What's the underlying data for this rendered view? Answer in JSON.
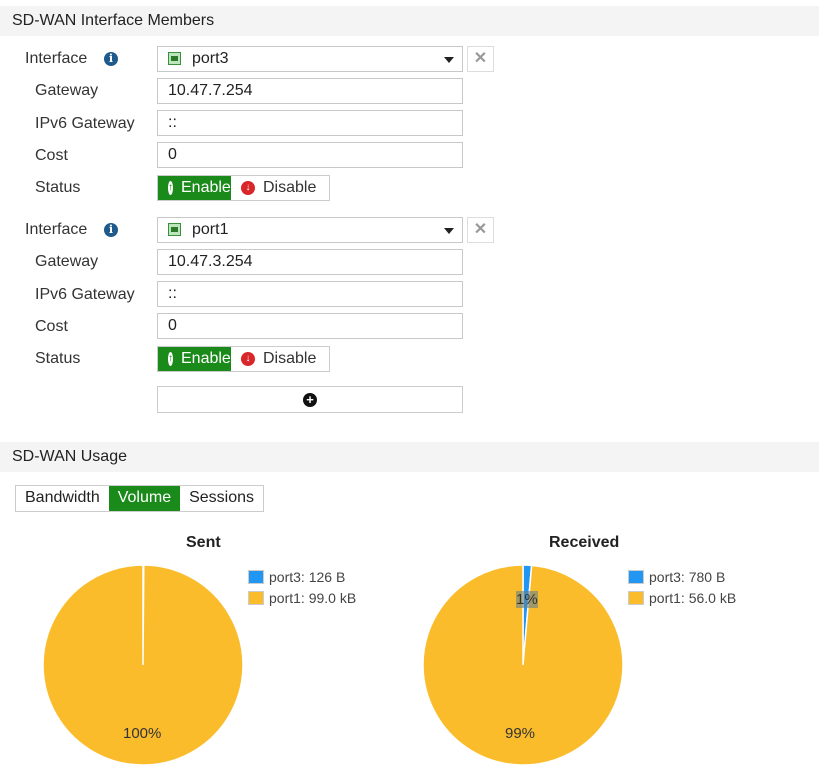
{
  "members": {
    "title": "SD-WAN Interface Members",
    "labels": {
      "interface": "Interface",
      "gateway": "Gateway",
      "ipv6": "IPv6 Gateway",
      "cost": "Cost",
      "status": "Status",
      "enable": "Enable",
      "disable": "Disable"
    },
    "items": [
      {
        "interface": "port3",
        "gateway": "10.47.7.254",
        "ipv6_gateway": "::",
        "cost": "0",
        "status": "Enable"
      },
      {
        "interface": "port1",
        "gateway": "10.47.3.254",
        "ipv6_gateway": "::",
        "cost": "0",
        "status": "Enable"
      }
    ]
  },
  "usage": {
    "title": "SD-WAN Usage",
    "tabs": [
      "Bandwidth",
      "Volume",
      "Sessions"
    ],
    "active_tab": "Volume"
  },
  "colors": {
    "port3": "#2196f3",
    "port1": "#fbbc2c",
    "accent": "#1a8a1a"
  },
  "chart_data": [
    {
      "type": "pie",
      "title": "Sent",
      "slices": [
        {
          "name": "port3",
          "label": "port3: 126 B",
          "value": 126,
          "color": "#2196f3"
        },
        {
          "name": "port1",
          "label": "port1: 99.0 kB",
          "value": 99000,
          "color": "#fbbc2c"
        }
      ],
      "data_labels": [
        "100%"
      ],
      "legend": "right"
    },
    {
      "type": "pie",
      "title": "Received",
      "slices": [
        {
          "name": "port3",
          "label": "port3: 780 B",
          "value": 780,
          "color": "#2196f3"
        },
        {
          "name": "port1",
          "label": "port1: 56.0 kB",
          "value": 56000,
          "color": "#fbbc2c"
        }
      ],
      "data_labels": [
        "1%",
        "99%"
      ],
      "legend": "right"
    }
  ]
}
